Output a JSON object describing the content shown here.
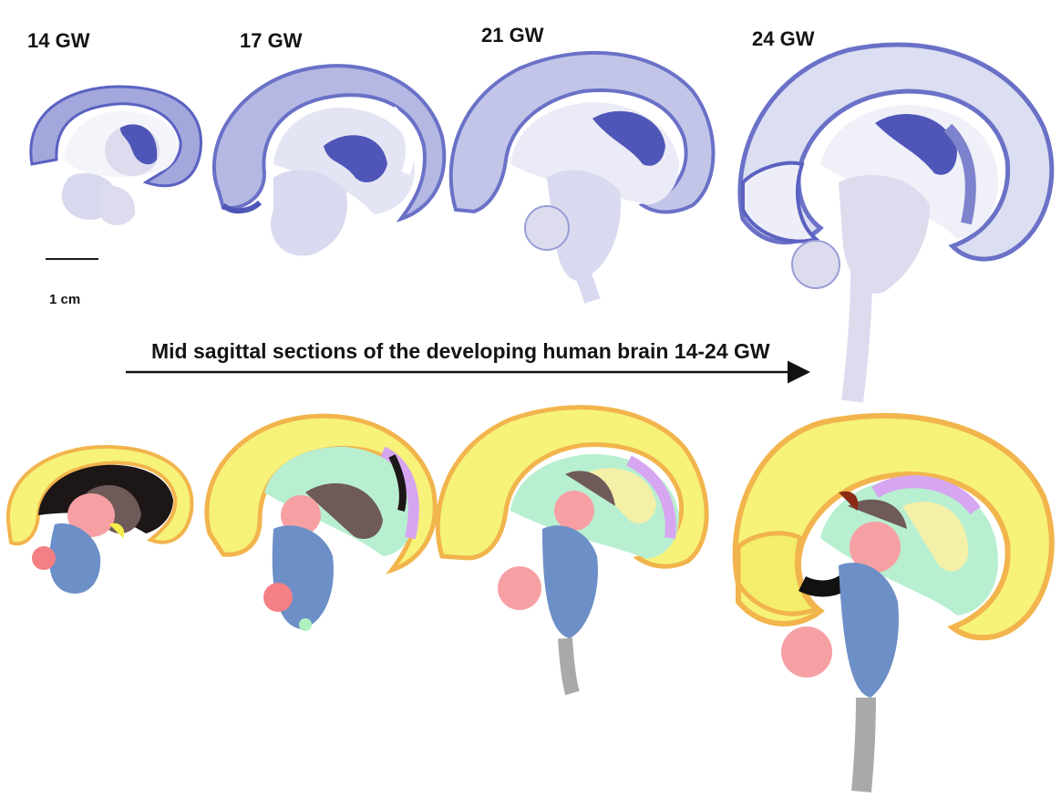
{
  "stage_labels": [
    "14 GW",
    "17 GW",
    "21 GW",
    "24 GW"
  ],
  "scale_bar_label": "1 cm",
  "caption": "Mid sagittal sections of the developing human brain 14-24 GW",
  "colors": {
    "nissl_dark": "#4f56b8",
    "nissl_mid": "#7d83cc",
    "nissl_light": "#d6d8ef",
    "atlas_yellow": "#f6f27a",
    "atlas_orange": "#f2b44c",
    "atlas_green": "#b8efd0",
    "atlas_pink": "#f7a0a4",
    "atlas_blue": "#6d8fc7",
    "atlas_brown": "#6e5a58",
    "atlas_lilac": "#d6a6f0"
  }
}
